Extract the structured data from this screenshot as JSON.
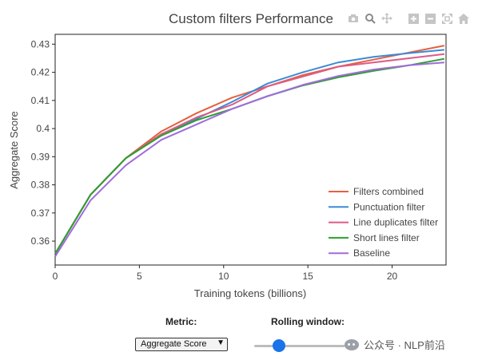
{
  "chart_data": {
    "type": "line",
    "title": "Custom filters Performance",
    "xlabel": "Training tokens (billions)",
    "ylabel": "Aggregate Score",
    "xlim": [
      0,
      23.2
    ],
    "ylim": [
      0.3515,
      0.4335
    ],
    "xticks": [
      0,
      5,
      10,
      15,
      20
    ],
    "yticks": [
      0.36,
      0.37,
      0.38,
      0.39,
      0.4,
      0.41,
      0.42,
      0.43
    ],
    "ytick_labels": [
      "0.36",
      "0.37",
      "0.38",
      "0.39",
      "0.4",
      "0.41",
      "0.42",
      "0.43"
    ],
    "grid": false,
    "legend_position": "bottom-right",
    "series": [
      {
        "name": "Filters combined",
        "color": "#e4613f",
        "x": [
          0,
          2.1,
          4.2,
          6.3,
          8.4,
          10.5,
          12.6,
          14.7,
          16.8,
          18.9,
          21,
          23.1
        ],
        "y": [
          0.3555,
          0.3765,
          0.3895,
          0.399,
          0.4055,
          0.411,
          0.415,
          0.419,
          0.422,
          0.4245,
          0.427,
          0.4295
        ]
      },
      {
        "name": "Punctuation filter",
        "color": "#3b8bd6",
        "x": [
          0,
          2.1,
          4.2,
          6.3,
          8.4,
          10.5,
          12.6,
          14.7,
          16.8,
          18.9,
          21,
          23.1
        ],
        "y": [
          0.3555,
          0.3765,
          0.3895,
          0.398,
          0.4035,
          0.4095,
          0.416,
          0.42,
          0.4235,
          0.4255,
          0.4268,
          0.428
        ]
      },
      {
        "name": "Line duplicates filter",
        "color": "#de5a87",
        "x": [
          0,
          2.1,
          4.2,
          6.3,
          8.4,
          10.5,
          12.6,
          14.7,
          16.8,
          18.9,
          21,
          23.1
        ],
        "y": [
          0.3555,
          0.3765,
          0.3895,
          0.398,
          0.404,
          0.4085,
          0.415,
          0.4185,
          0.422,
          0.4235,
          0.425,
          0.4265
        ]
      },
      {
        "name": "Short lines filter",
        "color": "#2ca02c",
        "x": [
          0,
          2.1,
          4.2,
          6.3,
          8.4,
          10.5,
          12.6,
          14.7,
          16.8,
          18.9,
          21,
          23.1
        ],
        "y": [
          0.3555,
          0.3765,
          0.3895,
          0.3975,
          0.403,
          0.407,
          0.4115,
          0.4153,
          0.4182,
          0.4205,
          0.4225,
          0.4248
        ]
      },
      {
        "name": "Baseline",
        "color": "#a06bdc",
        "x": [
          0,
          2.1,
          4.2,
          6.3,
          8.4,
          10.5,
          12.6,
          14.7,
          16.8,
          18.9,
          21,
          23.1
        ],
        "y": [
          0.3545,
          0.3745,
          0.387,
          0.396,
          0.4015,
          0.407,
          0.4115,
          0.4155,
          0.4187,
          0.421,
          0.4225,
          0.4235
        ]
      }
    ]
  },
  "controls": {
    "metric_label": "Metric:",
    "metric_value": "Aggregate Score",
    "rolling_label": "Rolling window:",
    "rolling_value": "3",
    "rolling_level": 0.25
  },
  "watermark": {
    "text": "公众号 · NLP前沿"
  },
  "modebar": [
    "camera-icon",
    "zoom-icon",
    "pan-icon",
    "zoom-in-icon",
    "zoom-out-icon",
    "autoscale-icon",
    "reset-home-icon"
  ]
}
